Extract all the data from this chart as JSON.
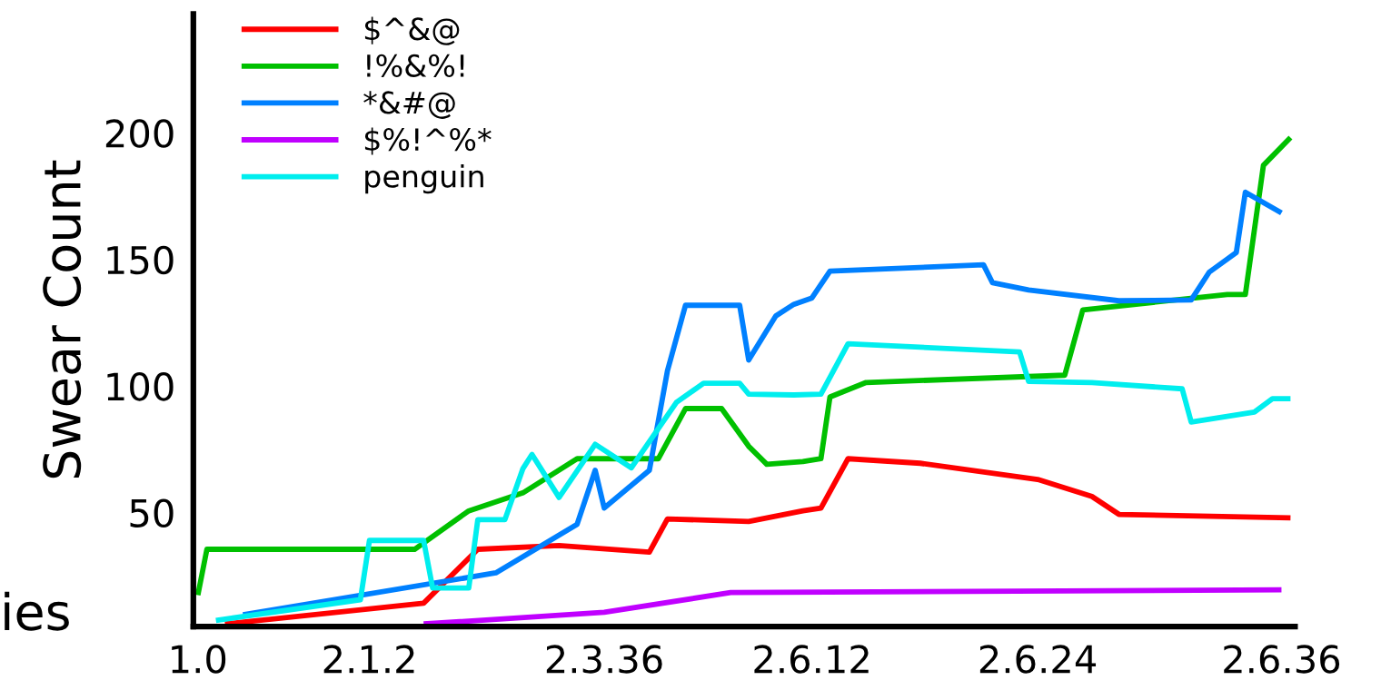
{
  "chart_data": {
    "type": "line",
    "ylabel": "Swear Count",
    "annotations": [
      "ies"
    ],
    "categories": [
      "1.0",
      null,
      null,
      null,
      null,
      null,
      null,
      null,
      null,
      null,
      null,
      null,
      null,
      null,
      null,
      null,
      null,
      null,
      null,
      "2.1.2",
      null,
      null,
      null,
      null,
      null,
      null,
      null,
      null,
      null,
      null,
      null,
      null,
      null,
      null,
      null,
      null,
      null,
      null,
      null,
      null,
      null,
      null,
      null,
      null,
      null,
      "2.3.36",
      null,
      null,
      null,
      null,
      null,
      null,
      null,
      null,
      null,
      null,
      null,
      null,
      null,
      null,
      null,
      null,
      null,
      null,
      null,
      null,
      null,
      null,
      "2.6.12",
      null,
      null,
      null,
      null,
      null,
      null,
      null,
      null,
      null,
      null,
      null,
      null,
      null,
      null,
      null,
      null,
      null,
      null,
      null,
      null,
      null,
      null,
      null,
      null,
      "2.6.24",
      null,
      null,
      null,
      null,
      null,
      null,
      null,
      null,
      null,
      null,
      null,
      null,
      null,
      null,
      null,
      null,
      null,
      null,
      null,
      null,
      null,
      null,
      null,
      null,
      null,
      null,
      "2.6.36",
      null
    ],
    "ylim": [
      5,
      247
    ],
    "yticks": [
      50,
      100,
      150,
      200
    ],
    "grid": false,
    "legend": "top left",
    "marker": "none",
    "line_style": "solid",
    "series": [
      {
        "name": "$^&@",
        "color": "#ff0000",
        "values": [
          null,
          null,
          null,
          6,
          null,
          null,
          null,
          null,
          null,
          null,
          null,
          null,
          null,
          null,
          null,
          null,
          null,
          null,
          null,
          null,
          null,
          null,
          null,
          null,
          null,
          14.2,
          null,
          null,
          null,
          null,
          null,
          35.5,
          null,
          null,
          null,
          null,
          null,
          null,
          null,
          null,
          37,
          null,
          null,
          null,
          null,
          null,
          null,
          null,
          null,
          null,
          34.4,
          null,
          47.5,
          null,
          null,
          null,
          null,
          null,
          null,
          null,
          null,
          46.5,
          null,
          null,
          null,
          null,
          null,
          50.7,
          null,
          51.8,
          null,
          null,
          71.3,
          null,
          null,
          null,
          null,
          null,
          null,
          null,
          69.5,
          null,
          null,
          null,
          null,
          null,
          null,
          null,
          null,
          null,
          null,
          null,
          null,
          63.1,
          null,
          null,
          null,
          null,
          null,
          56.4,
          null,
          null,
          49.3,
          null,
          null,
          null,
          null,
          null,
          null,
          null,
          null,
          null,
          null,
          null,
          null,
          null,
          null,
          null,
          null,
          null,
          null,
          47.9
        ]
      },
      {
        "name": "!%&%!",
        "color": "#00c000",
        "values": [
          17.4,
          35.5,
          null,
          null,
          null,
          null,
          null,
          null,
          null,
          null,
          null,
          null,
          null,
          null,
          null,
          null,
          null,
          null,
          null,
          null,
          null,
          null,
          null,
          null,
          35.5,
          null,
          null,
          null,
          null,
          null,
          50.7,
          null,
          null,
          null,
          null,
          null,
          57.8,
          null,
          null,
          null,
          null,
          null,
          71.3,
          null,
          null,
          null,
          null,
          null,
          null,
          null,
          null,
          71.3,
          null,
          null,
          91.1,
          null,
          null,
          null,
          91.1,
          null,
          null,
          76.2,
          null,
          69.1,
          null,
          null,
          null,
          70.2,
          null,
          71.3,
          95.7,
          null,
          null,
          null,
          101.4,
          null,
          null,
          null,
          null,
          null,
          null,
          null,
          null,
          null,
          null,
          null,
          null,
          null,
          null,
          null,
          null,
          null,
          null,
          null,
          null,
          null,
          104.3,
          null,
          130.1,
          null,
          null,
          null,
          null,
          null,
          null,
          null,
          null,
          null,
          null,
          null,
          null,
          null,
          null,
          null,
          136.2,
          null,
          136.2,
          null,
          187.2,
          null,
          null,
          198.2
        ]
      },
      {
        "name": "*&#@",
        "color": "#0080ff",
        "values": [
          null,
          null,
          null,
          null,
          null,
          9.6,
          null,
          null,
          null,
          null,
          null,
          null,
          null,
          null,
          null,
          null,
          null,
          null,
          null,
          null,
          null,
          null,
          null,
          null,
          null,
          null,
          null,
          null,
          null,
          null,
          null,
          null,
          null,
          26.2,
          null,
          null,
          null,
          null,
          null,
          null,
          null,
          null,
          45.4,
          null,
          66.7,
          51.8,
          null,
          null,
          null,
          null,
          66.7,
          null,
          106,
          null,
          131.9,
          null,
          null,
          null,
          null,
          null,
          131.9,
          110.3,
          null,
          null,
          127.7,
          null,
          132.3,
          null,
          134.8,
          null,
          145.4,
          null,
          null,
          null,
          null,
          null,
          null,
          null,
          null,
          null,
          null,
          null,
          null,
          null,
          null,
          null,
          null,
          147.9,
          140.8,
          null,
          null,
          null,
          138,
          null,
          null,
          null,
          null,
          null,
          null,
          null,
          null,
          null,
          133.7,
          null,
          null,
          null,
          null,
          null,
          null,
          null,
          134,
          null,
          145,
          null,
          null,
          152.8,
          176.6,
          null,
          null,
          null,
          168.4,
          null
        ]
      },
      {
        "name": "$%!^%*",
        "color": "#c000ff",
        "values": [
          null,
          null,
          null,
          null,
          null,
          null,
          null,
          null,
          null,
          null,
          null,
          null,
          null,
          null,
          null,
          null,
          null,
          null,
          null,
          null,
          null,
          null,
          null,
          null,
          null,
          6,
          null,
          null,
          null,
          null,
          null,
          null,
          null,
          null,
          null,
          null,
          null,
          null,
          null,
          null,
          null,
          null,
          null,
          null,
          null,
          10.6,
          null,
          null,
          null,
          null,
          null,
          null,
          null,
          null,
          null,
          null,
          null,
          null,
          null,
          18.4,
          null,
          null,
          null,
          null,
          null,
          null,
          null,
          null,
          null,
          null,
          null,
          null,
          null,
          null,
          null,
          null,
          null,
          null,
          null,
          null,
          null,
          null,
          null,
          null,
          null,
          null,
          null,
          null,
          null,
          null,
          null,
          null,
          null,
          null,
          null,
          null,
          null,
          null,
          null,
          null,
          null,
          null,
          null,
          null,
          null,
          null,
          null,
          null,
          null,
          null,
          null,
          null,
          null,
          null,
          null,
          null,
          null,
          null,
          null,
          null,
          19.5,
          null
        ]
      },
      {
        "name": "penguin",
        "color": "#00eeee",
        "values": [
          null,
          null,
          7.4,
          null,
          null,
          null,
          null,
          null,
          null,
          null,
          null,
          null,
          null,
          null,
          null,
          null,
          null,
          null,
          15.6,
          39,
          null,
          null,
          null,
          null,
          null,
          39,
          20.2,
          null,
          null,
          null,
          20.2,
          47.2,
          null,
          null,
          47.2,
          null,
          67.4,
          73,
          null,
          null,
          56,
          null,
          null,
          null,
          77,
          null,
          null,
          null,
          67.7,
          null,
          null,
          null,
          null,
          93.6,
          null,
          null,
          101.1,
          null,
          null,
          null,
          101.1,
          96.8,
          null,
          null,
          null,
          null,
          96.5,
          null,
          null,
          96.8,
          null,
          null,
          116.7,
          null,
          null,
          null,
          null,
          null,
          null,
          null,
          null,
          null,
          null,
          null,
          null,
          null,
          null,
          null,
          null,
          null,
          null,
          113.5,
          101.8,
          null,
          null,
          null,
          null,
          null,
          null,
          101.4,
          null,
          null,
          null,
          null,
          null,
          null,
          null,
          null,
          null,
          98.9,
          85.8,
          null,
          null,
          null,
          null,
          null,
          null,
          89.7,
          null,
          95,
          null,
          95
        ]
      }
    ]
  }
}
